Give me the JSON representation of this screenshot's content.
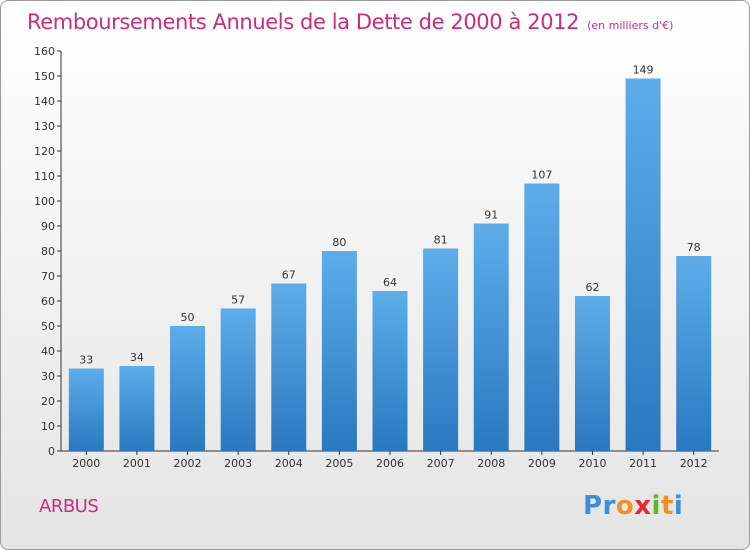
{
  "header": {
    "title": "Remboursements Annuels de la Dette de 2000 à 2012",
    "subtitle": "(en milliers d'€)"
  },
  "footer": {
    "commune": "ARBUS",
    "logo": {
      "letters": [
        "P",
        "r",
        "o",
        "x",
        "i",
        "t",
        "i"
      ],
      "colors": [
        "#3a8fd8",
        "#3a8fd8",
        "#f0901e",
        "#e8262e",
        "#5bb52f",
        "#f0901e",
        "#3a8fd8"
      ]
    }
  },
  "colors": {
    "bar": "#4a9fe3",
    "title": "#cc2b7f"
  },
  "chart_data": {
    "type": "bar",
    "title": "Remboursements Annuels de la Dette de 2000 à 2012",
    "subtitle": "(en milliers d'€)",
    "categories": [
      "2000",
      "2001",
      "2002",
      "2003",
      "2004",
      "2005",
      "2006",
      "2007",
      "2008",
      "2009",
      "2010",
      "2011",
      "2012"
    ],
    "values": [
      33,
      34,
      50,
      57,
      67,
      80,
      64,
      81,
      91,
      107,
      62,
      149,
      78
    ],
    "ylim": [
      0,
      160
    ],
    "yticks": [
      0,
      10,
      20,
      30,
      40,
      50,
      60,
      70,
      80,
      90,
      100,
      110,
      120,
      130,
      140,
      150,
      160
    ],
    "grid": false,
    "data_labels": true
  }
}
